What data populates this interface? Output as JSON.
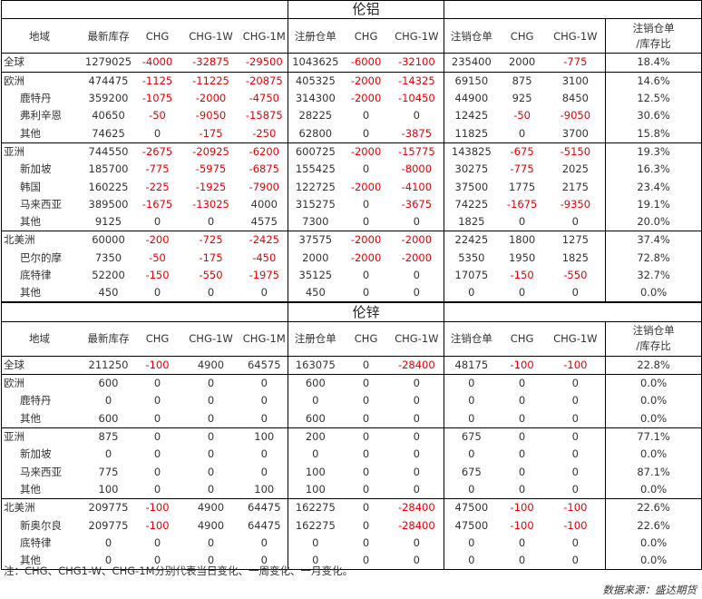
{
  "columns": [
    "地域",
    "最新库存",
    "CHG",
    "CHG-1W",
    "CHG-1M",
    "注册仓单",
    "CHG",
    "CHG-1W",
    "注销仓单",
    "CHG",
    "CHG-1W",
    "注销仓单/库存比"
  ],
  "column_header_ratio_line1": "注销仓单",
  "column_header_ratio_line2": "/库存比",
  "sections": [
    {
      "title": "伦铝",
      "groups": [
        {
          "rows": [
            {
              "region": "全球",
              "level": "top",
              "values": [
                "1279025",
                "-4000",
                "-32875",
                "-29500",
                "1043625",
                "-6000",
                "-32100",
                "235400",
                "2000",
                "-775",
                "18.4%"
              ]
            }
          ]
        },
        {
          "rows": [
            {
              "region": "欧洲",
              "level": "top",
              "values": [
                "474475",
                "-1125",
                "-11225",
                "-20875",
                "405325",
                "-2000",
                "-14325",
                "69150",
                "875",
                "3100",
                "14.6%"
              ]
            },
            {
              "region": "鹿特丹",
              "level": "sub",
              "values": [
                "359200",
                "-1075",
                "-2000",
                "-4750",
                "314300",
                "-2000",
                "-10450",
                "44900",
                "925",
                "8450",
                "12.5%"
              ]
            },
            {
              "region": "弗利辛恩",
              "level": "sub",
              "values": [
                "40650",
                "-50",
                "-9050",
                "-15875",
                "28225",
                "0",
                "0",
                "12425",
                "-50",
                "-9050",
                "30.6%"
              ]
            },
            {
              "region": "其他",
              "level": "sub",
              "values": [
                "74625",
                "0",
                "-175",
                "-250",
                "62800",
                "0",
                "-3875",
                "11825",
                "0",
                "3700",
                "15.8%"
              ]
            }
          ]
        },
        {
          "rows": [
            {
              "region": "亚洲",
              "level": "top",
              "values": [
                "744550",
                "-2675",
                "-20925",
                "-6200",
                "600725",
                "-2000",
                "-15775",
                "143825",
                "-675",
                "-5150",
                "19.3%"
              ]
            },
            {
              "region": "新加坡",
              "level": "sub",
              "values": [
                "185700",
                "-775",
                "-5975",
                "-6875",
                "155425",
                "0",
                "-8000",
                "30275",
                "-775",
                "2025",
                "16.3%"
              ]
            },
            {
              "region": "韩国",
              "level": "sub",
              "values": [
                "160225",
                "-225",
                "-1925",
                "-7900",
                "122725",
                "-2000",
                "-4100",
                "37500",
                "1775",
                "2175",
                "23.4%"
              ]
            },
            {
              "region": "马来西亚",
              "level": "sub",
              "values": [
                "389500",
                "-1675",
                "-13025",
                "4000",
                "315275",
                "0",
                "-3675",
                "74225",
                "-1675",
                "-9350",
                "19.1%"
              ]
            },
            {
              "region": "其他",
              "level": "sub",
              "values": [
                "9125",
                "0",
                "0",
                "4575",
                "7300",
                "0",
                "0",
                "1825",
                "0",
                "0",
                "20.0%"
              ]
            }
          ]
        },
        {
          "rows": [
            {
              "region": "北美洲",
              "level": "top",
              "values": [
                "60000",
                "-200",
                "-725",
                "-2425",
                "37575",
                "-2000",
                "-2000",
                "22425",
                "1800",
                "1275",
                "37.4%"
              ]
            },
            {
              "region": "巴尔的摩",
              "level": "sub",
              "values": [
                "7350",
                "-50",
                "-175",
                "-450",
                "2000",
                "-2000",
                "-2000",
                "5350",
                "1950",
                "1825",
                "72.8%"
              ]
            },
            {
              "region": "底特律",
              "level": "sub",
              "values": [
                "52200",
                "-150",
                "-550",
                "-1975",
                "35125",
                "0",
                "0",
                "17075",
                "-150",
                "-550",
                "32.7%"
              ]
            },
            {
              "region": "其他",
              "level": "sub",
              "values": [
                "450",
                "0",
                "0",
                "0",
                "450",
                "0",
                "0",
                "0",
                "0",
                "0",
                "0.0%"
              ]
            }
          ]
        }
      ]
    },
    {
      "title": "伦锌",
      "groups": [
        {
          "rows": [
            {
              "region": "全球",
              "level": "top",
              "values": [
                "211250",
                "-100",
                "4900",
                "64575",
                "163075",
                "0",
                "-28400",
                "48175",
                "-100",
                "-100",
                "22.8%"
              ]
            }
          ]
        },
        {
          "rows": [
            {
              "region": "欧洲",
              "level": "top",
              "values": [
                "600",
                "0",
                "0",
                "0",
                "600",
                "0",
                "0",
                "0",
                "0",
                "0",
                "0.0%"
              ]
            },
            {
              "region": "鹿特丹",
              "level": "sub",
              "values": [
                "0",
                "0",
                "0",
                "0",
                "0",
                "0",
                "0",
                "0",
                "0",
                "0",
                "0.0%"
              ]
            },
            {
              "region": "其他",
              "level": "sub",
              "values": [
                "600",
                "0",
                "0",
                "0",
                "600",
                "0",
                "0",
                "0",
                "0",
                "0",
                "0.0%"
              ]
            }
          ]
        },
        {
          "rows": [
            {
              "region": "亚洲",
              "level": "top",
              "values": [
                "875",
                "0",
                "0",
                "100",
                "200",
                "0",
                "0",
                "675",
                "0",
                "0",
                "77.1%"
              ]
            },
            {
              "region": "新加坡",
              "level": "sub",
              "values": [
                "0",
                "0",
                "0",
                "0",
                "0",
                "0",
                "0",
                "0",
                "0",
                "0",
                "0.0%"
              ]
            },
            {
              "region": "马来西亚",
              "level": "sub",
              "values": [
                "775",
                "0",
                "0",
                "0",
                "100",
                "0",
                "0",
                "675",
                "0",
                "0",
                "87.1%"
              ]
            },
            {
              "region": "其他",
              "level": "sub",
              "values": [
                "100",
                "0",
                "0",
                "100",
                "100",
                "0",
                "0",
                "0",
                "0",
                "0",
                "0.0%"
              ]
            }
          ]
        },
        {
          "rows": [
            {
              "region": "北美洲",
              "level": "top",
              "values": [
                "209775",
                "-100",
                "4900",
                "64475",
                "162275",
                "0",
                "-28400",
                "47500",
                "-100",
                "-100",
                "22.6%"
              ]
            },
            {
              "region": "新奥尔良",
              "level": "sub",
              "values": [
                "209775",
                "-100",
                "4900",
                "64475",
                "162275",
                "0",
                "-28400",
                "47500",
                "-100",
                "-100",
                "22.6%"
              ]
            },
            {
              "region": "底特律",
              "level": "sub",
              "values": [
                "0",
                "0",
                "0",
                "0",
                "0",
                "0",
                "0",
                "0",
                "0",
                "0",
                "0.0%"
              ]
            },
            {
              "region": "其他",
              "level": "sub",
              "values": [
                "0",
                "0",
                "0",
                "0",
                "0",
                "0",
                "0",
                "0",
                "0",
                "0",
                "0.0%"
              ]
            }
          ]
        }
      ]
    }
  ],
  "note": "注：CHG、CHG1-W、CHG-1M分别代表当日变化、一周变化、一月变化。",
  "source": "数据来源：盛达期货",
  "colors": {
    "negative": "#e60000",
    "text": "#333333",
    "border": "#000000"
  }
}
